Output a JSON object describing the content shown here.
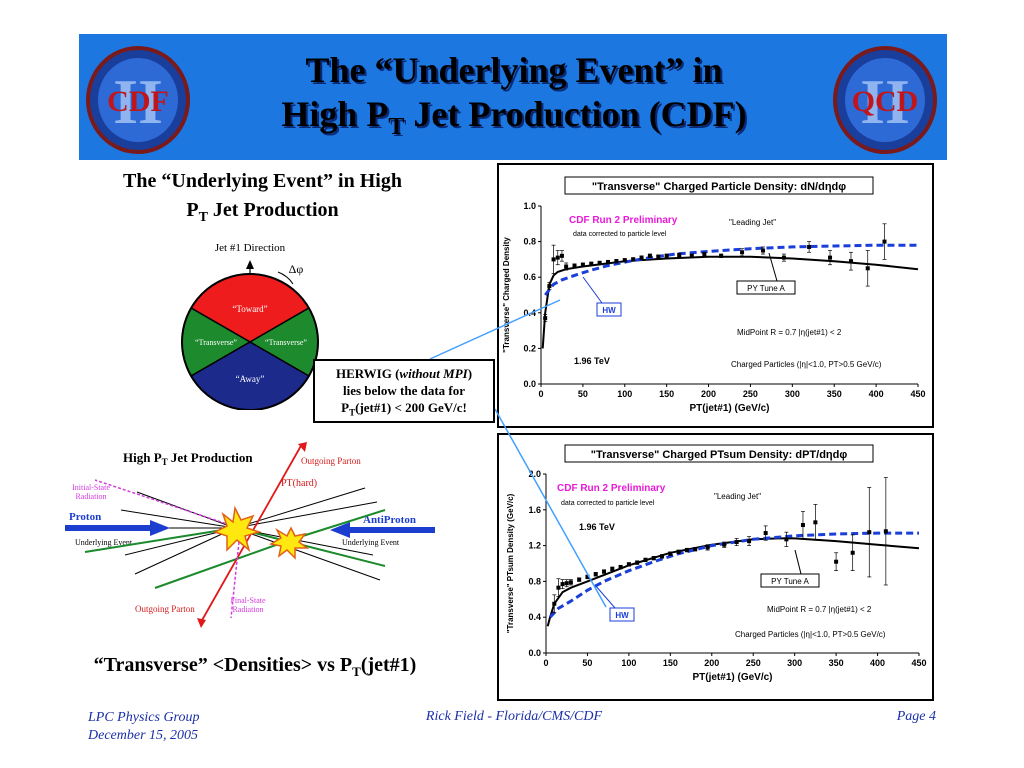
{
  "header": {
    "title_line1": "The “Underlying Event” in",
    "title_line2_pre": "High P",
    "title_line2_sub": "T",
    "title_line2_post": " Jet Production (CDF)",
    "logo_left_text": "CDF",
    "logo_left_numeral": "II",
    "logo_right_text": "QCD",
    "logo_right_numeral": "II"
  },
  "left": {
    "subtitle_line1": "The “Underlying Event” in High",
    "subtitle_line2_pre": "P",
    "subtitle_line2_sub": "T",
    "subtitle_line2_post": " Jet Production",
    "wheel": {
      "title": "Jet #1 Direction",
      "dphi": "Δφ",
      "toward": "“Toward”",
      "transverse_left": "“Transverse”",
      "transverse_right": "“Transverse”",
      "away": "“Away”",
      "colors": {
        "toward": "#ee1c1c",
        "transverse": "#1e8a2e",
        "away": "#1c2a8c"
      }
    },
    "diagram": {
      "title_pre": "High P",
      "title_sub": "T",
      "title_post": " Jet Production",
      "outgoing_top": "Outgoing Parton",
      "pt_hard": "PT(hard)",
      "initial_state_1": "Initial-State",
      "initial_state_2": "Radiation",
      "proton": "Proton",
      "antiproton": "AntiProton",
      "underlying_left": "Underlying Event",
      "underlying_right": "Underlying Event",
      "final_state_1": "Final-State",
      "final_state_2": "Radiation",
      "outgoing_bottom": "Outgoing Parton"
    },
    "bottom_caption_pre": "“Transverse” <Densities> vs P",
    "bottom_caption_sub": "T",
    "bottom_caption_post": "(jet#1)"
  },
  "callout": {
    "line1_pre": "HERWIG (",
    "line1_italic": "without MPI",
    "line1_post": ")",
    "line2": "lies below the data for",
    "line3_pre": "P",
    "line3_sub": "T",
    "line3_post": "(jet#1) < 200 GeV/c!"
  },
  "chart_data": [
    {
      "type": "line",
      "title": "\"Transverse\" Charged Particle Density: dN/dηdφ",
      "xlabel": "PT(jet#1)  (GeV/c)",
      "ylabel": "\"Transverse\" Charged Density",
      "xlim": [
        0,
        450
      ],
      "ylim": [
        0.0,
        1.0
      ],
      "xticks": [
        "0",
        "50",
        "100",
        "150",
        "200",
        "250",
        "300",
        "350",
        "400",
        "450"
      ],
      "yticks": [
        "0.0",
        "0.2",
        "0.4",
        "0.6",
        "0.8",
        "1.0"
      ],
      "annotations": {
        "prelim": "CDF Run 2 Preliminary",
        "corrected": "data corrected to particle level",
        "leading": "\"Leading Jet\"",
        "pytune": "PY Tune A",
        "hw": "HW",
        "midpoint": "MidPoint R = 0.7 |η(jet#1) < 2",
        "energy": "1.96 TeV",
        "charged": "Charged Particles (|η|<1.0, PT>0.5 GeV/c)"
      },
      "series": [
        {
          "name": "data",
          "kind": "points",
          "x": [
            5,
            10,
            15,
            20,
            25,
            30,
            40,
            50,
            60,
            70,
            80,
            90,
            100,
            110,
            120,
            130,
            140,
            150,
            165,
            180,
            195,
            215,
            240,
            265,
            290,
            320,
            345,
            370,
            390,
            410
          ],
          "y": [
            0.37,
            0.55,
            0.7,
            0.71,
            0.72,
            0.66,
            0.665,
            0.67,
            0.675,
            0.68,
            0.685,
            0.69,
            0.695,
            0.7,
            0.71,
            0.72,
            0.715,
            0.72,
            0.725,
            0.72,
            0.73,
            0.72,
            0.74,
            0.75,
            0.71,
            0.77,
            0.71,
            0.69,
            0.65,
            0.8
          ],
          "err": [
            0.02,
            0.02,
            0.08,
            0.04,
            0.03,
            0.02,
            0.01,
            0.01,
            0.01,
            0.01,
            0.01,
            0.01,
            0.01,
            0.01,
            0.01,
            0.01,
            0.01,
            0.01,
            0.01,
            0.01,
            0.01,
            0.01,
            0.02,
            0.02,
            0.02,
            0.03,
            0.04,
            0.05,
            0.1,
            0.1
          ]
        },
        {
          "name": "PY Tune A",
          "kind": "line",
          "x": [
            2,
            5,
            10,
            15,
            20,
            30,
            50,
            100,
            150,
            200,
            250,
            300,
            350,
            400,
            450
          ],
          "y": [
            0.2,
            0.4,
            0.56,
            0.61,
            0.63,
            0.645,
            0.66,
            0.69,
            0.705,
            0.715,
            0.715,
            0.705,
            0.69,
            0.67,
            0.645
          ]
        },
        {
          "name": "HW",
          "kind": "dashed",
          "x": [
            5,
            15,
            25,
            40,
            60,
            80,
            100,
            130,
            160,
            200,
            250,
            300,
            350,
            400,
            450
          ],
          "y": [
            0.5,
            0.56,
            0.585,
            0.61,
            0.64,
            0.665,
            0.685,
            0.71,
            0.73,
            0.745,
            0.76,
            0.77,
            0.775,
            0.78,
            0.78
          ]
        }
      ]
    },
    {
      "type": "line",
      "title": "\"Transverse\" Charged PTsum Density: dPT/dηdφ",
      "xlabel": "PT(jet#1)  (GeV/c)",
      "ylabel": "\"Transverse\" PTsum Density (GeV/c)",
      "xlim": [
        0,
        450
      ],
      "ylim": [
        0.0,
        2.0
      ],
      "xticks": [
        "0",
        "50",
        "100",
        "150",
        "200",
        "250",
        "300",
        "350",
        "400",
        "450"
      ],
      "yticks": [
        "0.0",
        "0.4",
        "0.8",
        "1.2",
        "1.6",
        "2.0"
      ],
      "annotations": {
        "prelim": "CDF Run 2 Preliminary",
        "corrected": "data corrected to particle level",
        "leading": "\"Leading Jet\"",
        "pytune": "PY Tune A",
        "hw": "HW",
        "midpoint": "MidPoint R = 0.7 |η(jet#1) < 2",
        "energy": "1.96 TeV",
        "charged": "Charged Particles (|η|<1.0, PT>0.5 GeV/c)"
      },
      "series": [
        {
          "name": "data",
          "kind": "points",
          "x": [
            10,
            15,
            20,
            25,
            30,
            40,
            50,
            60,
            70,
            80,
            90,
            100,
            110,
            120,
            130,
            140,
            150,
            160,
            170,
            180,
            195,
            215,
            230,
            245,
            265,
            290,
            310,
            325,
            350,
            370,
            390,
            410
          ],
          "y": [
            0.55,
            0.73,
            0.77,
            0.78,
            0.79,
            0.82,
            0.85,
            0.88,
            0.91,
            0.94,
            0.96,
            0.99,
            1.01,
            1.04,
            1.06,
            1.08,
            1.11,
            1.13,
            1.15,
            1.16,
            1.18,
            1.21,
            1.24,
            1.25,
            1.34,
            1.27,
            1.43,
            1.46,
            1.02,
            1.12,
            1.35,
            1.36
          ],
          "err": [
            0.1,
            0.1,
            0.05,
            0.04,
            0.03,
            0.02,
            0.02,
            0.02,
            0.02,
            0.02,
            0.02,
            0.02,
            0.02,
            0.02,
            0.02,
            0.02,
            0.02,
            0.02,
            0.02,
            0.02,
            0.03,
            0.03,
            0.04,
            0.05,
            0.08,
            0.08,
            0.15,
            0.2,
            0.1,
            0.2,
            0.5,
            0.6
          ]
        },
        {
          "name": "PY Tune A",
          "kind": "line",
          "x": [
            2,
            5,
            10,
            20,
            30,
            50,
            100,
            150,
            200,
            250,
            280,
            300,
            350,
            400,
            450
          ],
          "y": [
            0.3,
            0.4,
            0.55,
            0.68,
            0.73,
            0.8,
            0.98,
            1.12,
            1.21,
            1.27,
            1.28,
            1.28,
            1.25,
            1.21,
            1.17
          ]
        },
        {
          "name": "HW",
          "kind": "dashed",
          "x": [
            5,
            15,
            30,
            50,
            70,
            100,
            130,
            160,
            200,
            250,
            300,
            350,
            400,
            450
          ],
          "y": [
            0.4,
            0.5,
            0.58,
            0.7,
            0.8,
            0.92,
            1.02,
            1.11,
            1.2,
            1.27,
            1.31,
            1.33,
            1.34,
            1.34
          ]
        }
      ]
    }
  ],
  "footer": {
    "group": "LPC Physics Group",
    "date": "December 15, 2005",
    "author": "Rick Field - Florida/CMS/CDF",
    "page": "Page 4"
  }
}
